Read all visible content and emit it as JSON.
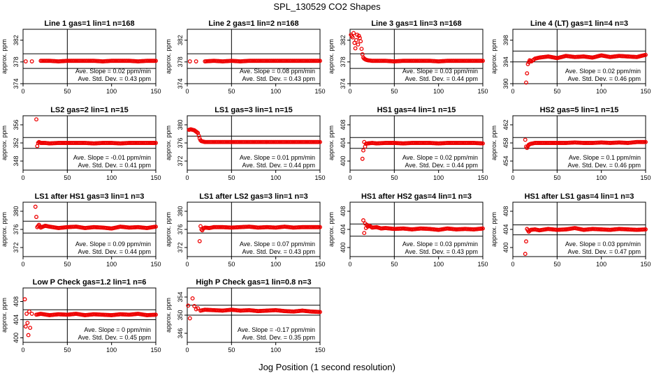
{
  "figure": {
    "title": "SPL_130529  CO2 Shapes",
    "xlabel": "Jog Position (1 second resolution)"
  },
  "colors": {
    "points": "#ee0000",
    "lines": "#000000",
    "background": "#ffffff"
  },
  "chart_data": [
    {
      "type": "scatter",
      "title": "Line 1 gas=1 lin=1 n=168",
      "ylabel": "approx. ppm",
      "xlim": [
        0,
        150
      ],
      "ylim": [
        374,
        384
      ],
      "xticks": [
        0,
        50,
        100,
        150
      ],
      "yticks": [
        374,
        378,
        382
      ],
      "hlines": [
        376.8,
        379.5
      ],
      "vline": 50,
      "annotations": [
        "Ave. Slope = 0.02 ppm/min",
        "Ave. Std. Dev. = 0.43 ppm"
      ],
      "x": [
        3,
        10,
        20,
        30,
        40,
        50,
        60,
        70,
        80,
        90,
        100,
        110,
        120,
        130,
        140,
        150
      ],
      "y": [
        378.1,
        378.1,
        378.2,
        378.2,
        378.1,
        378.2,
        378.2,
        378.2,
        378.2,
        378.1,
        378.2,
        378.2,
        378.2,
        378.1,
        378.2,
        378.2
      ]
    },
    {
      "type": "scatter",
      "title": "Line 2 gas=1 lin=2 n=168",
      "ylabel": "approx. ppm",
      "xlim": [
        0,
        150
      ],
      "ylim": [
        374,
        384
      ],
      "xticks": [
        0,
        50,
        100,
        150
      ],
      "yticks": [
        374,
        378,
        382
      ],
      "hlines": [
        376.8,
        379.5
      ],
      "vline": 50,
      "annotations": [
        "Ave. Slope = 0.08 ppm/min",
        "Ave. Std. Dev. = 0.43 ppm"
      ],
      "x": [
        3,
        10,
        20,
        30,
        40,
        50,
        60,
        70,
        80,
        90,
        100,
        110,
        120,
        130,
        140,
        150
      ],
      "y": [
        378.1,
        378.1,
        378.1,
        378.2,
        378.1,
        378.2,
        378.1,
        378.2,
        378.2,
        378.2,
        378.2,
        378.2,
        378.2,
        378.2,
        378.2,
        378.2
      ]
    },
    {
      "type": "scatter",
      "title": "Line 3 gas=1 lin=3 n=168",
      "ylabel": "approx. ppm",
      "xlim": [
        0,
        150
      ],
      "ylim": [
        374,
        384
      ],
      "xticks": [
        0,
        50,
        100,
        150
      ],
      "yticks": [
        374,
        378,
        382
      ],
      "hlines": [
        376.8,
        379.5
      ],
      "vline": 50,
      "annotations": [
        "Ave. Slope = 0.03 ppm/min",
        "Ave. Std. Dev. = 0.44 ppm"
      ],
      "x": [
        1,
        3,
        4,
        5,
        6,
        7,
        8,
        9,
        10,
        11,
        12,
        13,
        14,
        15,
        16,
        18,
        20,
        25,
        30,
        40,
        50,
        60,
        70,
        80,
        90,
        100,
        110,
        120,
        130,
        140,
        150
      ],
      "y": [
        383,
        382.5,
        383.3,
        381.5,
        380.5,
        382,
        383,
        381.2,
        382.8,
        382.4,
        381.8,
        380.4,
        379.4,
        378.8,
        378.6,
        378.4,
        378.3,
        378.2,
        378.2,
        378.2,
        378.1,
        378.2,
        378.2,
        378.2,
        378.2,
        378.1,
        378.2,
        378.2,
        378.2,
        378.2,
        378.2
      ]
    },
    {
      "type": "scatter",
      "title": "Line 4 (LT) gas=1 lin=4 n=3",
      "ylabel": "approx. ppm",
      "xlim": [
        0,
        150
      ],
      "ylim": [
        390,
        400
      ],
      "xticks": [
        0,
        50,
        100,
        150
      ],
      "yticks": [
        390,
        394,
        398
      ],
      "hlines": [
        394,
        396
      ],
      "vline": 50,
      "annotations": [
        "Ave. Slope = 0.02 ppm/min",
        "Ave. Std. Dev. = 0.46 ppm"
      ],
      "x": [
        15,
        17,
        19,
        21,
        25,
        30,
        40,
        50,
        60,
        70,
        80,
        90,
        100,
        110,
        120,
        130,
        140,
        150
      ],
      "y": [
        390.2,
        393.6,
        394.3,
        394.1,
        394.6,
        394.8,
        395,
        394.7,
        395.1,
        394.9,
        395,
        394.8,
        395.2,
        394.9,
        395.1,
        395,
        394.9,
        395.3
      ]
    },
    {
      "type": "scatter",
      "title": "LS2 gas=2 lin=1 n=15",
      "ylabel": "approx. ppm",
      "xlim": [
        0,
        150
      ],
      "ylim": [
        346,
        358
      ],
      "xticks": [
        0,
        50,
        100,
        150
      ],
      "yticks": [
        348,
        352,
        356
      ],
      "hlines": [
        350.8,
        353.2
      ],
      "vline": 50,
      "annotations": [
        "Ave. Slope = -0.01 ppm/min",
        "Ave. Std. Dev. = 0.41 ppm"
      ],
      "x": [
        15,
        16,
        17,
        18,
        20,
        25,
        30,
        40,
        50,
        60,
        70,
        80,
        90,
        100,
        110,
        120,
        130,
        140,
        150
      ],
      "y": [
        357.2,
        351.3,
        352,
        352.2,
        352,
        352,
        351.9,
        352,
        352,
        352,
        352,
        351.9,
        352,
        352,
        351.9,
        352,
        352,
        352,
        352
      ]
    },
    {
      "type": "scatter",
      "title": "LS1 gas=3 lin=1 n=15",
      "ylabel": "approx. ppm",
      "xlim": [
        0,
        150
      ],
      "ylim": [
        370,
        382
      ],
      "xticks": [
        0,
        50,
        100,
        150
      ],
      "yticks": [
        372,
        376,
        380
      ],
      "hlines": [
        374.8,
        377.5
      ],
      "vline": 50,
      "annotations": [
        "Ave. Slope = 0.01 ppm/min",
        "Ave. Std. Dev. = 0.44 ppm"
      ],
      "x": [
        2,
        4,
        6,
        8,
        10,
        12,
        13,
        14,
        15,
        16,
        18,
        20,
        25,
        30,
        40,
        50,
        60,
        70,
        80,
        90,
        100,
        110,
        120,
        130,
        140,
        150
      ],
      "y": [
        378.9,
        379,
        378.9,
        378.8,
        378.5,
        378.2,
        377.6,
        377,
        376.6,
        376.4,
        376.3,
        376.2,
        376.2,
        376.2,
        376.2,
        376.2,
        376.2,
        376.2,
        376.2,
        376.2,
        376.2,
        376.2,
        376.2,
        376.2,
        376.2,
        376.2
      ]
    },
    {
      "type": "scatter",
      "title": "HS1 gas=4 lin=1 n=15",
      "ylabel": "approx. ppm",
      "xlim": [
        0,
        150
      ],
      "ylim": [
        398,
        410
      ],
      "xticks": [
        0,
        50,
        100,
        150
      ],
      "yticks": [
        400,
        404,
        408
      ],
      "hlines": [
        402.8,
        405.2
      ],
      "vline": 50,
      "annotations": [
        "Ave. Slope = 0.02 ppm/min",
        "Ave. Std. Dev. = 0.44 ppm"
      ],
      "x": [
        14,
        16,
        17,
        18,
        20,
        25,
        30,
        40,
        50,
        60,
        70,
        80,
        90,
        100,
        110,
        120,
        130,
        140,
        150
      ],
      "y": [
        400.5,
        404.2,
        403.2,
        403.8,
        403.9,
        404,
        403.9,
        404,
        404,
        403.9,
        404,
        404,
        404,
        403.9,
        404,
        404,
        404,
        404,
        403.9
      ]
    },
    {
      "type": "scatter",
      "title": "HS2 gas=5 lin=1 n=15",
      "ylabel": "approx. ppm",
      "xlim": [
        0,
        150
      ],
      "ylim": [
        452,
        464
      ],
      "xticks": [
        0,
        50,
        100,
        150
      ],
      "yticks": [
        454,
        458,
        462
      ],
      "hlines": [
        456.8,
        459.2
      ],
      "vline": 50,
      "annotations": [
        "Ave. Slope = 0.1 ppm/min",
        "Ave. Std. Dev. = 0.46 ppm"
      ],
      "x": [
        14,
        15,
        16,
        17,
        18,
        20,
        25,
        30,
        40,
        50,
        60,
        70,
        80,
        90,
        100,
        110,
        120,
        130,
        140,
        150
      ],
      "y": [
        458.7,
        457.2,
        456.9,
        457.3,
        457.6,
        457.8,
        458,
        458,
        458,
        458,
        458,
        458.1,
        458,
        458,
        458.1,
        458,
        458.1,
        458,
        458.2,
        458.2
      ]
    },
    {
      "type": "scatter",
      "title": "LS1 after HS1 gas=3 lin=1 n=3",
      "ylabel": "approx. ppm",
      "xlim": [
        0,
        150
      ],
      "ylim": [
        370,
        382
      ],
      "xticks": [
        0,
        50,
        100,
        150
      ],
      "yticks": [
        372,
        376,
        380
      ],
      "hlines": [
        375.2,
        377.8
      ],
      "vline": 50,
      "annotations": [
        "Ave. Slope = 0.09 ppm/min",
        "Ave. Std. Dev. = 0.44 ppm"
      ],
      "x": [
        14,
        16,
        18,
        20,
        25,
        30,
        40,
        50,
        60,
        70,
        80,
        90,
        100,
        110,
        120,
        130,
        140,
        150
      ],
      "y": [
        381,
        376.5,
        377,
        376.4,
        376.8,
        376.6,
        376.3,
        376.5,
        376.6,
        376.3,
        376.5,
        376.4,
        376.2,
        376.6,
        376.4,
        376.5,
        376.3,
        376.6
      ]
    },
    {
      "type": "scatter",
      "title": "LS1 after LS2 gas=3 lin=1 n=3",
      "ylabel": "approx. ppm",
      "xlim": [
        0,
        150
      ],
      "ylim": [
        370,
        382
      ],
      "xticks": [
        0,
        50,
        100,
        150
      ],
      "yticks": [
        372,
        376,
        380
      ],
      "hlines": [
        375.2,
        377.8
      ],
      "vline": 50,
      "annotations": [
        "Ave. Slope = 0.07 ppm/min",
        "Ave. Std. Dev. = 0.43 ppm"
      ],
      "x": [
        14,
        15,
        16,
        17,
        18,
        20,
        25,
        30,
        40,
        50,
        60,
        70,
        80,
        90,
        100,
        110,
        120,
        130,
        140,
        150
      ],
      "y": [
        373.4,
        376.7,
        376,
        375.8,
        376.2,
        376.4,
        376.3,
        376.5,
        376.5,
        376.4,
        376.5,
        376.6,
        376.4,
        376.5,
        376.4,
        376.6,
        376.4,
        376.5,
        376.5,
        376.5
      ]
    },
    {
      "type": "scatter",
      "title": "HS1 after HS2 gas=4 lin=1 n=3",
      "ylabel": "approx. ppm",
      "xlim": [
        0,
        150
      ],
      "ylim": [
        398,
        410
      ],
      "xticks": [
        0,
        50,
        100,
        150
      ],
      "yticks": [
        400,
        404,
        408
      ],
      "hlines": [
        402.5,
        405.2
      ],
      "vline": 50,
      "annotations": [
        "Ave. Slope = 0.03 ppm/min",
        "Ave. Std. Dev. = 0.43 ppm"
      ],
      "x": [
        15,
        16,
        17,
        18,
        19,
        20,
        22,
        25,
        30,
        35,
        40,
        50,
        60,
        70,
        80,
        90,
        100,
        110,
        120,
        130,
        140,
        150
      ],
      "y": [
        406,
        403.2,
        405.3,
        404.3,
        405,
        404.6,
        404.8,
        404.4,
        404.5,
        404.2,
        404.3,
        404.1,
        404.2,
        404,
        404.2,
        404.1,
        403.9,
        404.2,
        404,
        404.1,
        404,
        404.2
      ]
    },
    {
      "type": "scatter",
      "title": "HS1 after LS1 gas=4 lin=1 n=3",
      "ylabel": "approx. ppm",
      "xlim": [
        0,
        150
      ],
      "ylim": [
        398,
        410
      ],
      "xticks": [
        0,
        50,
        100,
        150
      ],
      "yticks": [
        400,
        404,
        408
      ],
      "hlines": [
        402.8,
        405
      ],
      "vline": 50,
      "annotations": [
        "Ave. Slope = 0.03 ppm/min",
        "Ave. Std. Dev. = 0.47 ppm"
      ],
      "x": [
        14,
        16,
        18,
        20,
        25,
        30,
        40,
        50,
        60,
        70,
        80,
        90,
        100,
        110,
        120,
        130,
        140,
        150
      ],
      "y": [
        398.6,
        404.1,
        403.5,
        403.9,
        404,
        403.8,
        404.1,
        403.9,
        404,
        404.3,
        403.9,
        404.1,
        404,
        403.9,
        404.1,
        404,
        403.9,
        404
      ]
    },
    {
      "type": "scatter",
      "title": "Low P Check gas=1.2 lin=1 n=6",
      "ylabel": "approx. ppm",
      "xlim": [
        0,
        150
      ],
      "ylim": [
        399,
        411
      ],
      "xticks": [
        0,
        50,
        100,
        150
      ],
      "yticks": [
        400,
        404,
        408
      ],
      "hlines": [
        404,
        406.2
      ],
      "vline": 50,
      "annotations": [
        "Ave. Slope = 0 ppm/min",
        "Ave. Std. Dev. = 0.45 ppm"
      ],
      "x": [
        2,
        3,
        4,
        5,
        6,
        7,
        8,
        10,
        15,
        20,
        30,
        40,
        50,
        60,
        70,
        80,
        90,
        100,
        110,
        120,
        130,
        140,
        150
      ],
      "y": [
        408.5,
        402.5,
        405.3,
        403.3,
        400.6,
        405.8,
        402.2,
        405.3,
        405.1,
        405.3,
        405,
        405.2,
        405.1,
        405.3,
        405,
        405.2,
        405.1,
        405,
        405.2,
        405.1,
        405.3,
        405,
        405.1
      ]
    },
    {
      "type": "scatter",
      "title": "High P Check gas=1 lin=0.8 n=3",
      "ylabel": "approx. ppm",
      "xlim": [
        0,
        150
      ],
      "ylim": [
        344,
        356
      ],
      "xticks": [
        0,
        50,
        100,
        150
      ],
      "yticks": [
        346,
        350,
        354
      ],
      "hlines": [
        350,
        352.2
      ],
      "vline": 50,
      "annotations": [
        "Ave. Slope = -0.17 ppm/min",
        "Ave. Std. Dev. = 0.35 ppm"
      ],
      "x": [
        1,
        3,
        6,
        8,
        10,
        12,
        15,
        20,
        30,
        40,
        50,
        60,
        70,
        80,
        90,
        100,
        110,
        120,
        130,
        140,
        150
      ],
      "y": [
        352.1,
        349.3,
        353.7,
        352,
        351.3,
        351.5,
        351,
        351.2,
        351.1,
        351,
        351.2,
        351,
        351.1,
        350.9,
        351,
        351.1,
        350.9,
        350.8,
        351,
        350.8,
        350.7
      ]
    }
  ]
}
